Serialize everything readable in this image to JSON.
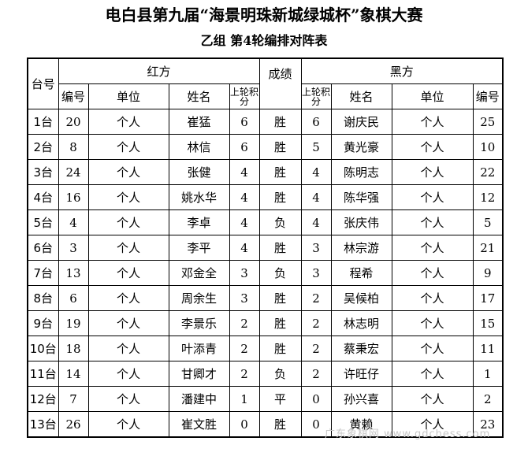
{
  "title": "电白县第九届“海景明珠新城绿城杯”象棋大赛",
  "subtitle": "乙组  第4轮编排对阵表",
  "headers": {
    "board": "台号",
    "red": "红方",
    "result": "成绩",
    "black": "黑方",
    "no": "编号",
    "unit": "单位",
    "name": "姓名",
    "prev_score": "上轮积分"
  },
  "rows": [
    {
      "board": "1台",
      "red_no": "20",
      "red_unit": "个人",
      "red_name": "崔猛",
      "red_score": "6",
      "result": "胜",
      "black_score": "6",
      "black_name": "谢庆民",
      "black_unit": "个人",
      "black_no": "25"
    },
    {
      "board": "2台",
      "red_no": "8",
      "red_unit": "个人",
      "red_name": "林信",
      "red_score": "6",
      "result": "胜",
      "black_score": "5",
      "black_name": "黄光豪",
      "black_unit": "个人",
      "black_no": "10"
    },
    {
      "board": "3台",
      "red_no": "24",
      "red_unit": "个人",
      "red_name": "张健",
      "red_score": "4",
      "result": "胜",
      "black_score": "4",
      "black_name": "陈明志",
      "black_unit": "个人",
      "black_no": "22"
    },
    {
      "board": "4台",
      "red_no": "16",
      "red_unit": "个人",
      "red_name": "姚水华",
      "red_score": "4",
      "result": "胜",
      "black_score": "4",
      "black_name": "陈华强",
      "black_unit": "个人",
      "black_no": "12"
    },
    {
      "board": "5台",
      "red_no": "4",
      "red_unit": "个人",
      "red_name": "李卓",
      "red_score": "4",
      "result": "负",
      "black_score": "4",
      "black_name": "张庆伟",
      "black_unit": "个人",
      "black_no": "5"
    },
    {
      "board": "6台",
      "red_no": "3",
      "red_unit": "个人",
      "red_name": "李平",
      "red_score": "4",
      "result": "胜",
      "black_score": "3",
      "black_name": "林宗游",
      "black_unit": "个人",
      "black_no": "21"
    },
    {
      "board": "7台",
      "red_no": "13",
      "red_unit": "个人",
      "red_name": "邓金全",
      "red_score": "3",
      "result": "负",
      "black_score": "3",
      "black_name": "程希",
      "black_unit": "个人",
      "black_no": "9"
    },
    {
      "board": "8台",
      "red_no": "6",
      "red_unit": "个人",
      "red_name": "周余生",
      "red_score": "3",
      "result": "胜",
      "black_score": "2",
      "black_name": "吴候柏",
      "black_unit": "个人",
      "black_no": "17"
    },
    {
      "board": "9台",
      "red_no": "19",
      "red_unit": "个人",
      "red_name": "李景乐",
      "red_score": "2",
      "result": "胜",
      "black_score": "2",
      "black_name": "林志明",
      "black_unit": "个人",
      "black_no": "15"
    },
    {
      "board": "10台",
      "red_no": "18",
      "red_unit": "个人",
      "red_name": "叶添青",
      "red_score": "2",
      "result": "胜",
      "black_score": "2",
      "black_name": "蔡秉宏",
      "black_unit": "个人",
      "black_no": "11"
    },
    {
      "board": "11台",
      "red_no": "14",
      "red_unit": "个人",
      "red_name": "甘卿才",
      "red_score": "2",
      "result": "负",
      "black_score": "2",
      "black_name": "许旺仔",
      "black_unit": "个人",
      "black_no": "1"
    },
    {
      "board": "12台",
      "red_no": "7",
      "red_unit": "个人",
      "red_name": "潘建中",
      "red_score": "1",
      "result": "平",
      "black_score": "0",
      "black_name": "孙兴喜",
      "black_unit": "个人",
      "black_no": "2"
    },
    {
      "board": "13台",
      "red_no": "26",
      "red_unit": "个人",
      "red_name": "崔文胜",
      "red_score": "0",
      "result": "胜",
      "black_score": "0",
      "black_name": "黄赖",
      "black_unit": "个人",
      "black_no": "23"
    }
  ],
  "watermark": "广东象棋网 www.gdchess.com"
}
